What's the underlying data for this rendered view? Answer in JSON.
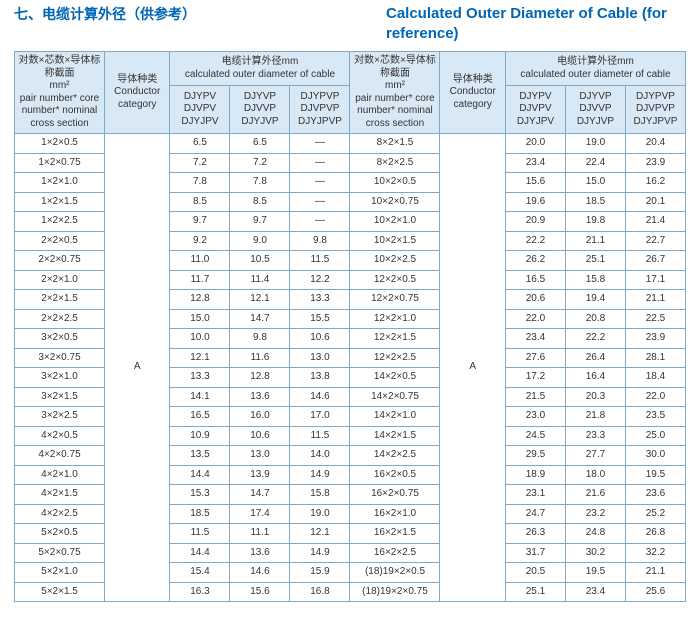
{
  "title_cn": "七、电缆计算外径（供参考）",
  "title_en": "Calculated Outer Diameter of Cable (for reference)",
  "head": {
    "spec_cn": "对数×芯数×导体标称截面",
    "spec_unit": "mm²",
    "spec_en": "pair number* core number* nominal cross section",
    "cat_cn": "导体种类",
    "cat_en": "Conductor category",
    "diam_cn": "电缆计算外径mm",
    "diam_en": "calculated outer diameter of cable",
    "cat2_cn": "导体种类",
    "cat2_en": "Conductor category",
    "sub": {
      "c1": "DJYPV DJVPV DJYJPV",
      "c2": "DJYVP DJVVP DJYJVP",
      "c3": "DJYPVP DJVPVP DJYJPVP",
      "c4": "DJYPV DJVPV DJYJPV",
      "c5": "DJYVP DJVVP DJYJVP",
      "c6": "DJYPVP DJVPVP DJYJPVP"
    }
  },
  "conductor_left": "A",
  "conductor_right": "A",
  "rows": [
    {
      "s1": "1×2×0.5",
      "v1": "6.5",
      "v2": "6.5",
      "v3": "—",
      "s2": "8×2×1.5",
      "v4": "20.0",
      "v5": "19.0",
      "v6": "20.4"
    },
    {
      "s1": "1×2×0.75",
      "v1": "7.2",
      "v2": "7.2",
      "v3": "—",
      "s2": "8×2×2.5",
      "v4": "23.4",
      "v5": "22.4",
      "v6": "23.9"
    },
    {
      "s1": "1×2×1.0",
      "v1": "7.8",
      "v2": "7.8",
      "v3": "—",
      "s2": "10×2×0.5",
      "v4": "15.6",
      "v5": "15.0",
      "v6": "16.2"
    },
    {
      "s1": "1×2×1.5",
      "v1": "8.5",
      "v2": "8.5",
      "v3": "—",
      "s2": "10×2×0.75",
      "v4": "19.6",
      "v5": "18.5",
      "v6": "20.1"
    },
    {
      "s1": "1×2×2.5",
      "v1": "9.7",
      "v2": "9.7",
      "v3": "—",
      "s2": "10×2×1.0",
      "v4": "20.9",
      "v5": "19.8",
      "v6": "21.4"
    },
    {
      "s1": "2×2×0.5",
      "v1": "9.2",
      "v2": "9.0",
      "v3": "9.8",
      "s2": "10×2×1.5",
      "v4": "22.2",
      "v5": "21.1",
      "v6": "22.7"
    },
    {
      "s1": "2×2×0.75",
      "v1": "11.0",
      "v2": "10.5",
      "v3": "11.5",
      "s2": "10×2×2.5",
      "v4": "26.2",
      "v5": "25.1",
      "v6": "26.7"
    },
    {
      "s1": "2×2×1.0",
      "v1": "11.7",
      "v2": "11.4",
      "v3": "12.2",
      "s2": "12×2×0.5",
      "v4": "16.5",
      "v5": "15.8",
      "v6": "17.1"
    },
    {
      "s1": "2×2×1.5",
      "v1": "12.8",
      "v2": "12.1",
      "v3": "13.3",
      "s2": "12×2×0.75",
      "v4": "20.6",
      "v5": "19.4",
      "v6": "21.1"
    },
    {
      "s1": "2×2×2.5",
      "v1": "15.0",
      "v2": "14.7",
      "v3": "15.5",
      "s2": "12×2×1.0",
      "v4": "22.0",
      "v5": "20.8",
      "v6": "22.5"
    },
    {
      "s1": "3×2×0.5",
      "v1": "10.0",
      "v2": "9.8",
      "v3": "10.6",
      "s2": "12×2×1.5",
      "v4": "23.4",
      "v5": "22.2",
      "v6": "23.9"
    },
    {
      "s1": "3×2×0.75",
      "v1": "12.1",
      "v2": "11.6",
      "v3": "13.0",
      "s2": "12×2×2.5",
      "v4": "27.6",
      "v5": "26.4",
      "v6": "28.1"
    },
    {
      "s1": "3×2×1.0",
      "v1": "13.3",
      "v2": "12.8",
      "v3": "13.8",
      "s2": "14×2×0.5",
      "v4": "17.2",
      "v5": "16.4",
      "v6": "18.4"
    },
    {
      "s1": "3×2×1.5",
      "v1": "14.1",
      "v2": "13.6",
      "v3": "14.6",
      "s2": "14×2×0.75",
      "v4": "21.5",
      "v5": "20.3",
      "v6": "22.0"
    },
    {
      "s1": "3×2×2.5",
      "v1": "16.5",
      "v2": "16.0",
      "v3": "17.0",
      "s2": "14×2×1.0",
      "v4": "23.0",
      "v5": "21.8",
      "v6": "23.5"
    },
    {
      "s1": "4×2×0.5",
      "v1": "10.9",
      "v2": "10.6",
      "v3": "11.5",
      "s2": "14×2×1.5",
      "v4": "24.5",
      "v5": "23.3",
      "v6": "25.0"
    },
    {
      "s1": "4×2×0.75",
      "v1": "13.5",
      "v2": "13.0",
      "v3": "14.0",
      "s2": "14×2×2.5",
      "v4": "29.5",
      "v5": "27.7",
      "v6": "30.0"
    },
    {
      "s1": "4×2×1.0",
      "v1": "14.4",
      "v2": "13.9",
      "v3": "14.9",
      "s2": "16×2×0.5",
      "v4": "18.9",
      "v5": "18.0",
      "v6": "19.5"
    },
    {
      "s1": "4×2×1.5",
      "v1": "15.3",
      "v2": "14.7",
      "v3": "15.8",
      "s2": "16×2×0.75",
      "v4": "23.1",
      "v5": "21.6",
      "v6": "23.6"
    },
    {
      "s1": "4×2×2.5",
      "v1": "18.5",
      "v2": "17.4",
      "v3": "19.0",
      "s2": "16×2×1.0",
      "v4": "24.7",
      "v5": "23.2",
      "v6": "25.2"
    },
    {
      "s1": "5×2×0.5",
      "v1": "11.5",
      "v2": "11.1",
      "v3": "12.1",
      "s2": "16×2×1.5",
      "v4": "26.3",
      "v5": "24.8",
      "v6": "26.8"
    },
    {
      "s1": "5×2×0.75",
      "v1": "14.4",
      "v2": "13.6",
      "v3": "14.9",
      "s2": "16×2×2.5",
      "v4": "31.7",
      "v5": "30.2",
      "v6": "32.2"
    },
    {
      "s1": "5×2×1.0",
      "v1": "15.4",
      "v2": "14.6",
      "v3": "15.9",
      "s2": "(18)19×2×0.5",
      "v4": "20.5",
      "v5": "19.5",
      "v6": "21.1"
    },
    {
      "s1": "5×2×1.5",
      "v1": "16.3",
      "v2": "15.6",
      "v3": "16.8",
      "s2": "(18)19×2×0.75",
      "v4": "25.1",
      "v5": "23.4",
      "v6": "25.6"
    }
  ]
}
